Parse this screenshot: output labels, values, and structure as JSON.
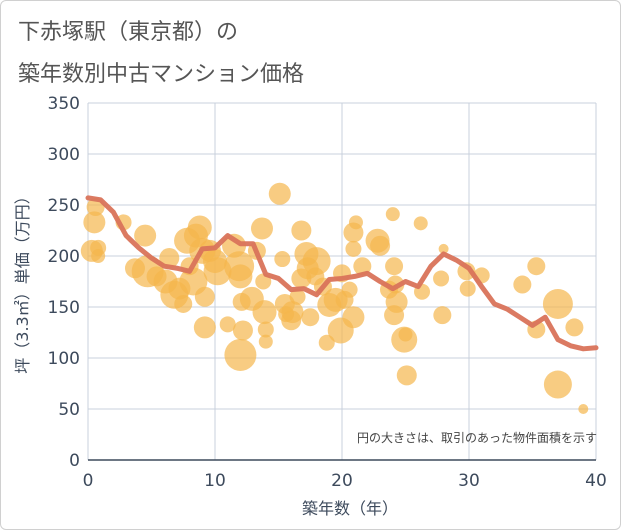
{
  "title_line1": "下赤塚駅（東京都）の",
  "title_line2": "築年数別中古マンション価格",
  "colors": {
    "bubble": "#f5b64d",
    "line": "#d9735a",
    "grid": "#c8d0dc",
    "text": "#3d4a5c"
  },
  "chart_data": {
    "type": "scatter",
    "title": "下赤塚駅（東京都）の築年数別中古マンション価格",
    "xlabel": "築年数（年）",
    "ylabel": "坪（3.3㎡）単価（万円）",
    "xlim": [
      0,
      40
    ],
    "ylim": [
      0,
      350
    ],
    "xticks": [
      "0",
      "10",
      "20",
      "30",
      "40"
    ],
    "yticks": [
      "0",
      "50",
      "100",
      "150",
      "200",
      "250",
      "300",
      "350"
    ],
    "grid": true,
    "note": "円の大きさは、取引のあった物件面積を示す",
    "bubbles": [
      {
        "x": 0.3,
        "y": 205,
        "r": 11
      },
      {
        "x": 0.8,
        "y": 200,
        "r": 7
      },
      {
        "x": 0.8,
        "y": 208,
        "r": 8
      },
      {
        "x": 0.5,
        "y": 233,
        "r": 11
      },
      {
        "x": 0.6,
        "y": 248,
        "r": 9
      },
      {
        "x": 2.8,
        "y": 233,
        "r": 8
      },
      {
        "x": 3.7,
        "y": 188,
        "r": 10
      },
      {
        "x": 4.5,
        "y": 220,
        "r": 11
      },
      {
        "x": 4.7,
        "y": 185,
        "r": 16
      },
      {
        "x": 5.4,
        "y": 180,
        "r": 10
      },
      {
        "x": 6.1,
        "y": 175,
        "r": 12
      },
      {
        "x": 6.4,
        "y": 198,
        "r": 10
      },
      {
        "x": 6.8,
        "y": 162,
        "r": 14
      },
      {
        "x": 7.2,
        "y": 168,
        "r": 11
      },
      {
        "x": 7.5,
        "y": 153,
        "r": 9
      },
      {
        "x": 7.8,
        "y": 215,
        "r": 13
      },
      {
        "x": 8.0,
        "y": 190,
        "r": 9
      },
      {
        "x": 8.3,
        "y": 175,
        "r": 14
      },
      {
        "x": 8.5,
        "y": 220,
        "r": 12
      },
      {
        "x": 8.8,
        "y": 228,
        "r": 12
      },
      {
        "x": 9.0,
        "y": 205,
        "r": 13
      },
      {
        "x": 9.2,
        "y": 160,
        "r": 10
      },
      {
        "x": 9.2,
        "y": 130,
        "r": 11
      },
      {
        "x": 9.6,
        "y": 205,
        "r": 11
      },
      {
        "x": 10.0,
        "y": 195,
        "r": 12
      },
      {
        "x": 10.2,
        "y": 185,
        "r": 14
      },
      {
        "x": 11.0,
        "y": 133,
        "r": 8
      },
      {
        "x": 11.5,
        "y": 210,
        "r": 12
      },
      {
        "x": 11.9,
        "y": 190,
        "r": 15
      },
      {
        "x": 12.0,
        "y": 180,
        "r": 12
      },
      {
        "x": 12.1,
        "y": 155,
        "r": 9
      },
      {
        "x": 12.2,
        "y": 127,
        "r": 10
      },
      {
        "x": 12.0,
        "y": 103,
        "r": 16
      },
      {
        "x": 12.9,
        "y": 158,
        "r": 12
      },
      {
        "x": 13.3,
        "y": 205,
        "r": 9
      },
      {
        "x": 13.7,
        "y": 227,
        "r": 11
      },
      {
        "x": 13.8,
        "y": 175,
        "r": 8
      },
      {
        "x": 13.9,
        "y": 145,
        "r": 12
      },
      {
        "x": 14.0,
        "y": 128,
        "r": 8
      },
      {
        "x": 14.0,
        "y": 116,
        "r": 7
      },
      {
        "x": 15.1,
        "y": 261,
        "r": 11
      },
      {
        "x": 15.3,
        "y": 197,
        "r": 8
      },
      {
        "x": 15.5,
        "y": 153,
        "r": 10
      },
      {
        "x": 15.6,
        "y": 143,
        "r": 8
      },
      {
        "x": 16.0,
        "y": 137,
        "r": 10
      },
      {
        "x": 16.1,
        "y": 145,
        "r": 11
      },
      {
        "x": 16.5,
        "y": 160,
        "r": 8
      },
      {
        "x": 16.8,
        "y": 178,
        "r": 10
      },
      {
        "x": 16.8,
        "y": 225,
        "r": 10
      },
      {
        "x": 17.2,
        "y": 202,
        "r": 12
      },
      {
        "x": 17.3,
        "y": 188,
        "r": 11
      },
      {
        "x": 17.5,
        "y": 140,
        "r": 9
      },
      {
        "x": 17.9,
        "y": 180,
        "r": 9
      },
      {
        "x": 18.0,
        "y": 195,
        "r": 14
      },
      {
        "x": 18.5,
        "y": 170,
        "r": 9
      },
      {
        "x": 18.8,
        "y": 115,
        "r": 8
      },
      {
        "x": 19.0,
        "y": 152,
        "r": 12
      },
      {
        "x": 19.5,
        "y": 157,
        "r": 12
      },
      {
        "x": 19.9,
        "y": 127,
        "r": 13
      },
      {
        "x": 20.0,
        "y": 183,
        "r": 9
      },
      {
        "x": 20.2,
        "y": 157,
        "r": 9
      },
      {
        "x": 20.6,
        "y": 167,
        "r": 8
      },
      {
        "x": 20.9,
        "y": 140,
        "r": 11
      },
      {
        "x": 20.9,
        "y": 223,
        "r": 10
      },
      {
        "x": 20.9,
        "y": 207,
        "r": 8
      },
      {
        "x": 21.1,
        "y": 233,
        "r": 7
      },
      {
        "x": 21.6,
        "y": 190,
        "r": 9
      },
      {
        "x": 22.8,
        "y": 215,
        "r": 12
      },
      {
        "x": 23.0,
        "y": 210,
        "r": 10
      },
      {
        "x": 23.7,
        "y": 167,
        "r": 9
      },
      {
        "x": 24.0,
        "y": 241,
        "r": 7
      },
      {
        "x": 24.1,
        "y": 190,
        "r": 9
      },
      {
        "x": 24.2,
        "y": 172,
        "r": 9
      },
      {
        "x": 24.1,
        "y": 142,
        "r": 10
      },
      {
        "x": 24.3,
        "y": 155,
        "r": 11
      },
      {
        "x": 24.9,
        "y": 118,
        "r": 13
      },
      {
        "x": 25.0,
        "y": 123,
        "r": 7
      },
      {
        "x": 25.1,
        "y": 83,
        "r": 10
      },
      {
        "x": 26.2,
        "y": 232,
        "r": 7
      },
      {
        "x": 26.3,
        "y": 165,
        "r": 8
      },
      {
        "x": 27.8,
        "y": 178,
        "r": 8
      },
      {
        "x": 28.0,
        "y": 207,
        "r": 5
      },
      {
        "x": 27.9,
        "y": 142,
        "r": 9
      },
      {
        "x": 29.8,
        "y": 185,
        "r": 9
      },
      {
        "x": 29.9,
        "y": 168,
        "r": 8
      },
      {
        "x": 31.0,
        "y": 181,
        "r": 8
      },
      {
        "x": 34.2,
        "y": 172,
        "r": 9
      },
      {
        "x": 35.3,
        "y": 190,
        "r": 9
      },
      {
        "x": 35.3,
        "y": 128,
        "r": 9
      },
      {
        "x": 37.0,
        "y": 153,
        "r": 15
      },
      {
        "x": 37.0,
        "y": 74,
        "r": 14
      },
      {
        "x": 38.3,
        "y": 130,
        "r": 9
      },
      {
        "x": 39.0,
        "y": 50,
        "r": 5
      }
    ],
    "trend": {
      "name": "",
      "x": [
        0,
        1,
        2,
        3,
        4,
        5,
        6,
        7,
        8,
        9,
        10,
        11,
        12,
        13,
        14,
        15,
        16,
        17,
        18,
        19,
        20,
        21,
        22,
        23,
        24,
        25,
        26,
        27,
        28,
        29,
        30,
        31,
        32,
        33,
        34,
        35,
        36,
        37,
        38,
        39,
        40
      ],
      "y": [
        257,
        255,
        243,
        220,
        208,
        198,
        190,
        188,
        185,
        207,
        208,
        220,
        212,
        212,
        182,
        178,
        167,
        168,
        162,
        177,
        178,
        180,
        183,
        175,
        168,
        175,
        170,
        190,
        202,
        196,
        188,
        170,
        153,
        148,
        140,
        132,
        140,
        118,
        112,
        109,
        110
      ]
    }
  }
}
